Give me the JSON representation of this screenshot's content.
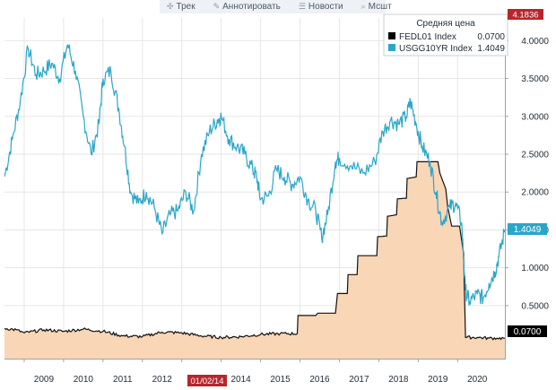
{
  "toolbar": {
    "items": [
      {
        "icon": "crosshair-icon",
        "glyph": "✣",
        "label": "Трек"
      },
      {
        "icon": "pencil-icon",
        "glyph": "✎",
        "label": "Аннотировать"
      },
      {
        "icon": "news-icon",
        "glyph": "☰",
        "label": "Новости"
      },
      {
        "icon": "zoom-icon",
        "glyph": "⌕",
        "label": "Мсшт"
      }
    ]
  },
  "legend": {
    "title": "Средняя цена",
    "entries": [
      {
        "name": "FEDL01 Index",
        "value": "0.0700",
        "color": "#000000"
      },
      {
        "name": "USGG10YR Index",
        "value": "1.4049",
        "color": "#2aa6c9"
      }
    ]
  },
  "badges": {
    "top": "4.1836",
    "usgg": "1.4049",
    "fedl": "0.0700",
    "date": "01/02/14"
  },
  "colors": {
    "usgg": "#2aa6c9",
    "fedl_line": "#111111",
    "fedl_fill": "#f9d6b6",
    "grid": "#e6e6e6",
    "badge_blue": "#2aa6c9",
    "badge_red": "#b8252b"
  },
  "chart_data": {
    "type": "line",
    "x_range": [
      2008.5,
      2021.2
    ],
    "y_range": [
      -0.2,
      4.3
    ],
    "y_ticks": [
      "4.0000",
      "3.5000",
      "3.0000",
      "2.5000",
      "2.0000",
      "1.5000",
      "1.0000",
      "0.5000"
    ],
    "y_tick_values": [
      4.0,
      3.5,
      3.0,
      2.5,
      2.0,
      1.5,
      1.0,
      0.5
    ],
    "x_ticks": [
      "2009",
      "2010",
      "2011",
      "2012",
      "2013",
      "2014",
      "2015",
      "2016",
      "2017",
      "2018",
      "2019",
      "2020"
    ],
    "x_tick_values": [
      2009.0,
      2010.0,
      2011.0,
      2012.0,
      2013.0,
      2014.0,
      2015.0,
      2016.0,
      2017.0,
      2018.0,
      2019.0,
      2020.0
    ],
    "series": [
      {
        "name": "USGG10YR Index",
        "points": [
          [
            2008.5,
            2.2
          ],
          [
            2008.7,
            2.7
          ],
          [
            2008.9,
            3.2
          ],
          [
            2009.1,
            3.9
          ],
          [
            2009.3,
            3.55
          ],
          [
            2009.5,
            3.6
          ],
          [
            2009.7,
            3.7
          ],
          [
            2009.9,
            3.5
          ],
          [
            2010.1,
            3.95
          ],
          [
            2010.3,
            3.6
          ],
          [
            2010.5,
            3.0
          ],
          [
            2010.7,
            2.5
          ],
          [
            2010.9,
            2.9
          ],
          [
            2011.0,
            3.5
          ],
          [
            2011.2,
            3.6
          ],
          [
            2011.4,
            3.1
          ],
          [
            2011.55,
            2.6
          ],
          [
            2011.7,
            2.0
          ],
          [
            2011.9,
            1.85
          ],
          [
            2012.1,
            2.0
          ],
          [
            2012.3,
            1.8
          ],
          [
            2012.5,
            1.45
          ],
          [
            2012.7,
            1.7
          ],
          [
            2012.9,
            1.75
          ],
          [
            2013.1,
            2.0
          ],
          [
            2013.3,
            1.75
          ],
          [
            2013.5,
            2.5
          ],
          [
            2013.7,
            2.8
          ],
          [
            2013.9,
            2.95
          ],
          [
            2014.0,
            3.0
          ],
          [
            2014.2,
            2.7
          ],
          [
            2014.4,
            2.6
          ],
          [
            2014.6,
            2.5
          ],
          [
            2014.8,
            2.3
          ],
          [
            2014.9,
            2.2
          ],
          [
            2015.0,
            1.9
          ],
          [
            2015.2,
            1.95
          ],
          [
            2015.4,
            2.3
          ],
          [
            2015.6,
            2.2
          ],
          [
            2015.8,
            2.1
          ],
          [
            2016.0,
            2.2
          ],
          [
            2016.2,
            1.9
          ],
          [
            2016.4,
            1.75
          ],
          [
            2016.55,
            1.4
          ],
          [
            2016.7,
            1.7
          ],
          [
            2016.9,
            2.4
          ],
          [
            2017.0,
            2.45
          ],
          [
            2017.3,
            2.35
          ],
          [
            2017.6,
            2.25
          ],
          [
            2017.9,
            2.4
          ],
          [
            2018.1,
            2.8
          ],
          [
            2018.3,
            2.95
          ],
          [
            2018.5,
            2.9
          ],
          [
            2018.7,
            3.0
          ],
          [
            2018.8,
            3.2
          ],
          [
            2018.95,
            2.9
          ],
          [
            2019.1,
            2.6
          ],
          [
            2019.3,
            2.4
          ],
          [
            2019.45,
            2.0
          ],
          [
            2019.6,
            1.6
          ],
          [
            2019.8,
            1.8
          ],
          [
            2019.95,
            1.85
          ],
          [
            2020.1,
            1.6
          ],
          [
            2020.2,
            0.7
          ],
          [
            2020.3,
            0.55
          ],
          [
            2020.5,
            0.65
          ],
          [
            2020.65,
            0.6
          ],
          [
            2020.8,
            0.8
          ],
          [
            2020.95,
            0.95
          ],
          [
            2021.05,
            1.15
          ],
          [
            2021.2,
            1.5
          ]
        ]
      },
      {
        "name": "FEDL01 Index",
        "points": [
          [
            2008.5,
            0.2
          ],
          [
            2008.8,
            0.18
          ],
          [
            2009.0,
            0.14
          ],
          [
            2009.5,
            0.18
          ],
          [
            2010.0,
            0.16
          ],
          [
            2010.5,
            0.19
          ],
          [
            2011.0,
            0.16
          ],
          [
            2011.5,
            0.1
          ],
          [
            2012.0,
            0.09
          ],
          [
            2012.5,
            0.15
          ],
          [
            2013.0,
            0.14
          ],
          [
            2013.5,
            0.1
          ],
          [
            2014.0,
            0.08
          ],
          [
            2014.5,
            0.09
          ],
          [
            2015.0,
            0.12
          ],
          [
            2015.5,
            0.13
          ],
          [
            2015.93,
            0.13
          ],
          [
            2015.95,
            0.37
          ],
          [
            2016.4,
            0.37
          ],
          [
            2016.45,
            0.4
          ],
          [
            2016.9,
            0.4
          ],
          [
            2016.95,
            0.66
          ],
          [
            2017.2,
            0.66
          ],
          [
            2017.22,
            0.91
          ],
          [
            2017.45,
            0.91
          ],
          [
            2017.47,
            1.16
          ],
          [
            2017.95,
            1.16
          ],
          [
            2017.97,
            1.41
          ],
          [
            2018.2,
            1.42
          ],
          [
            2018.22,
            1.68
          ],
          [
            2018.45,
            1.7
          ],
          [
            2018.47,
            1.91
          ],
          [
            2018.7,
            1.92
          ],
          [
            2018.72,
            2.18
          ],
          [
            2018.95,
            2.2
          ],
          [
            2018.97,
            2.4
          ],
          [
            2019.5,
            2.4
          ],
          [
            2019.55,
            2.25
          ],
          [
            2019.7,
            2.04
          ],
          [
            2019.75,
            1.8
          ],
          [
            2019.85,
            1.55
          ],
          [
            2020.05,
            1.55
          ],
          [
            2020.15,
            1.2
          ],
          [
            2020.2,
            0.08
          ],
          [
            2020.5,
            0.08
          ],
          [
            2020.8,
            0.07
          ],
          [
            2021.0,
            0.07
          ],
          [
            2021.2,
            0.07
          ]
        ]
      }
    ]
  }
}
